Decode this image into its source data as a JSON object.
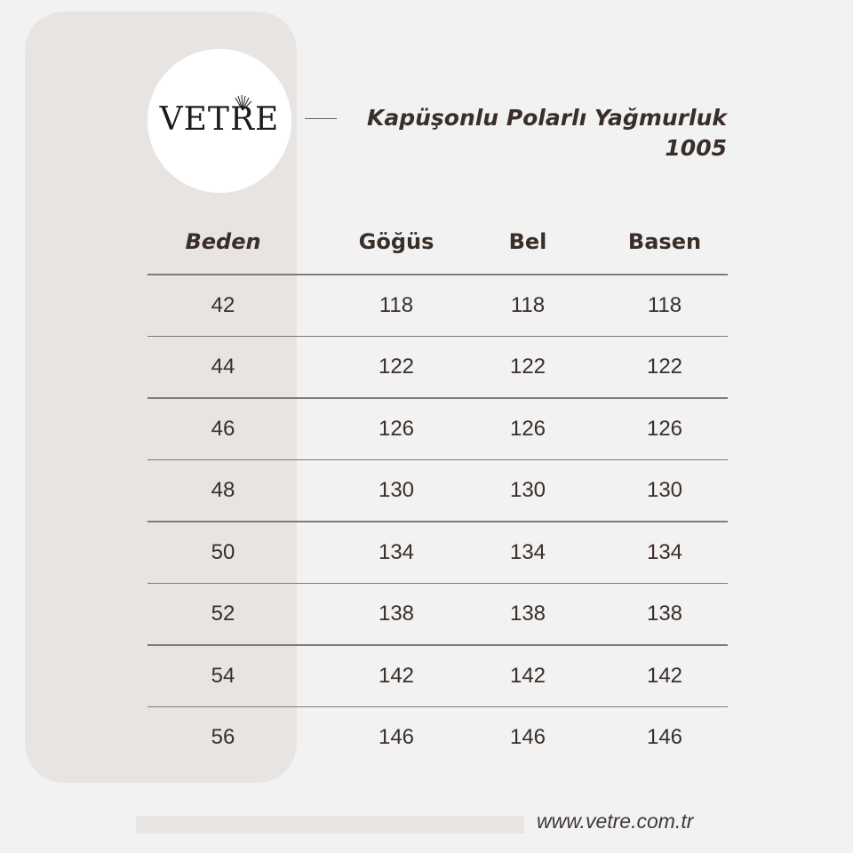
{
  "brand": {
    "logo_text": "VETRE",
    "website": "www.vetre.com.tr"
  },
  "product": {
    "name": "Kapüşonlu Polarlı Yağmurluk",
    "code": "1005"
  },
  "size_table": {
    "columns": [
      "Beden",
      "Göğüs",
      "Bel",
      "Basen"
    ],
    "rows": [
      [
        "42",
        "118",
        "118",
        "118"
      ],
      [
        "44",
        "122",
        "122",
        "122"
      ],
      [
        "46",
        "126",
        "126",
        "126"
      ],
      [
        "48",
        "130",
        "130",
        "130"
      ],
      [
        "50",
        "134",
        "134",
        "134"
      ],
      [
        "52",
        "138",
        "138",
        "138"
      ],
      [
        "54",
        "142",
        "142",
        "142"
      ],
      [
        "56",
        "146",
        "146",
        "146"
      ]
    ]
  },
  "colors": {
    "background": "#f2f2f2",
    "panel": "#e8e4e1",
    "text": "#3a2e28",
    "rule": "#847a74"
  }
}
